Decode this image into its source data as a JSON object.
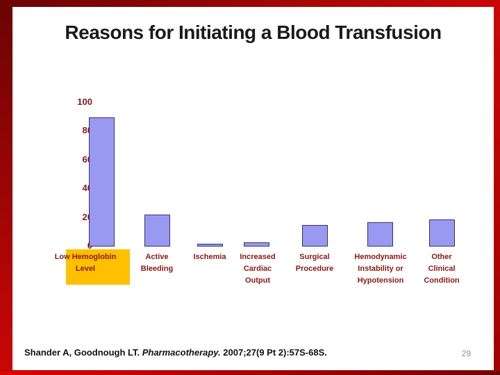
{
  "slide": {
    "title": "Reasons for Initiating a Blood Transfusion",
    "page_number": "29",
    "citation": {
      "authors": "Shander A, Goodnough LT. ",
      "journal_italic": "Pharmacotherapy.",
      "rest": " 2007;27(9 Pt 2):57S-68S."
    }
  },
  "colors": {
    "title_text": "#1a1a1a",
    "chart_text": "#8b1717",
    "bar_fill": "#9999f2",
    "bar_border": "#333366",
    "highlight_box": "#ffc000",
    "frame_dark_red": "#6b0404",
    "frame_bright_red": "#cb0606",
    "page_number_gray": "#909090"
  },
  "chart_data": {
    "type": "bar",
    "title": "",
    "xlabel": "",
    "ylabel": "",
    "categories": [
      "Low Hemoglobin Level",
      "Active Bleeding",
      "Ischemia",
      "Increased Cardiac Output",
      "Surgical Procedure",
      "Hemodynamic Instability or Hypotension",
      "Other Clinical Condition"
    ],
    "values": [
      90,
      22,
      2,
      3,
      15,
      17,
      19
    ],
    "y_ticks": [
      0,
      20,
      40,
      60,
      80,
      100
    ],
    "ylim": [
      0,
      100
    ],
    "grid": false,
    "legend": false,
    "highlighted_category": "Low Hemoglobin Level",
    "label_lines": [
      [
        "Low Hemoglobin",
        "Level"
      ],
      [
        "Active",
        "Bleeding"
      ],
      [
        "Ischemia"
      ],
      [
        "Increased",
        "Cardiac",
        "Output"
      ],
      [
        "Surgical",
        "Procedure"
      ],
      [
        "Hemodynamic",
        "Instability or",
        "Hypotension"
      ],
      [
        "Other",
        "Clinical",
        "Condition"
      ]
    ]
  }
}
